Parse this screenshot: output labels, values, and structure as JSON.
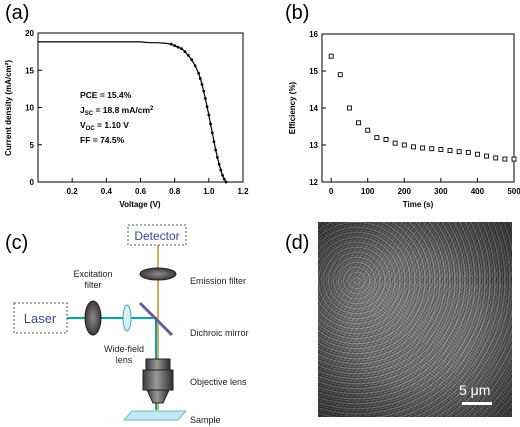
{
  "panels": {
    "a": "(a)",
    "b": "(b)",
    "c": "(c)",
    "d": "(d)"
  },
  "chart_data": [
    {
      "type": "line",
      "xlabel": "Voltage (V)",
      "ylabel": "Current density (mA/cm²)",
      "xlim": [
        0,
        1.2
      ],
      "ylim": [
        0,
        20
      ],
      "xticks": [
        "0.2",
        "0.4",
        "0.6",
        "0.8",
        "1.0",
        "1.2"
      ],
      "yticks": [
        "0",
        "5",
        "10",
        "15",
        "20"
      ],
      "grid": false,
      "annotations": {
        "pce": "PCE = 15.4%",
        "jsc_sym": "J",
        "jsc_sub": "SC",
        "jsc_val": " = 18.8 mA/cm",
        "jsc_sup": "2",
        "voc_sym": "V",
        "voc_sub": "OC",
        "voc_val": " = 1.10 V",
        "ff": "FF = 74.5%"
      },
      "x": [
        0.0,
        0.05,
        0.1,
        0.15,
        0.2,
        0.25,
        0.3,
        0.35,
        0.4,
        0.45,
        0.5,
        0.55,
        0.6,
        0.65,
        0.7,
        0.75,
        0.78,
        0.8,
        0.82,
        0.84,
        0.86,
        0.88,
        0.9,
        0.92,
        0.94,
        0.95,
        0.96,
        0.97,
        0.98,
        0.99,
        1.0,
        1.01,
        1.02,
        1.03,
        1.04,
        1.05,
        1.06,
        1.07,
        1.08,
        1.09,
        1.1
      ],
      "y": [
        18.8,
        18.8,
        18.8,
        18.8,
        18.8,
        18.8,
        18.8,
        18.8,
        18.8,
        18.8,
        18.8,
        18.8,
        18.8,
        18.7,
        18.7,
        18.6,
        18.5,
        18.3,
        18.1,
        17.9,
        17.5,
        17.0,
        16.4,
        15.6,
        14.6,
        13.9,
        13.1,
        12.2,
        11.2,
        10.1,
        9.0,
        7.8,
        6.6,
        5.4,
        4.3,
        3.3,
        2.4,
        1.6,
        0.9,
        0.4,
        0.0
      ]
    },
    {
      "type": "scatter",
      "xlabel": "Time (s)",
      "ylabel": "Efficiency (%)",
      "xlim": [
        -25,
        500
      ],
      "ylim": [
        12,
        16
      ],
      "xticks": [
        "0",
        "100",
        "200",
        "300",
        "400",
        "500"
      ],
      "yticks": [
        "12",
        "13",
        "14",
        "15",
        "16"
      ],
      "grid": false,
      "x": [
        0,
        25,
        50,
        75,
        100,
        125,
        150,
        175,
        200,
        225,
        250,
        275,
        300,
        325,
        350,
        375,
        400,
        425,
        450,
        475,
        500
      ],
      "y": [
        15.4,
        14.9,
        14.0,
        13.6,
        13.4,
        13.2,
        13.15,
        13.05,
        13.0,
        12.95,
        12.92,
        12.9,
        12.88,
        12.85,
        12.82,
        12.8,
        12.75,
        12.7,
        12.65,
        12.62,
        12.62
      ]
    }
  ],
  "optics": {
    "detector": "Detector",
    "laser": "Laser",
    "excitation_filter_1": "Excitation",
    "excitation_filter_2": "filter",
    "emission_filter": "Emission filter",
    "dichroic_mirror": "Dichroic mirror",
    "widefield_1": "Wide-field",
    "widefield_2": "lens",
    "objective_lens": "Objective lens",
    "sample": "Sample"
  },
  "micrograph": {
    "scale_label": "5 μm"
  }
}
